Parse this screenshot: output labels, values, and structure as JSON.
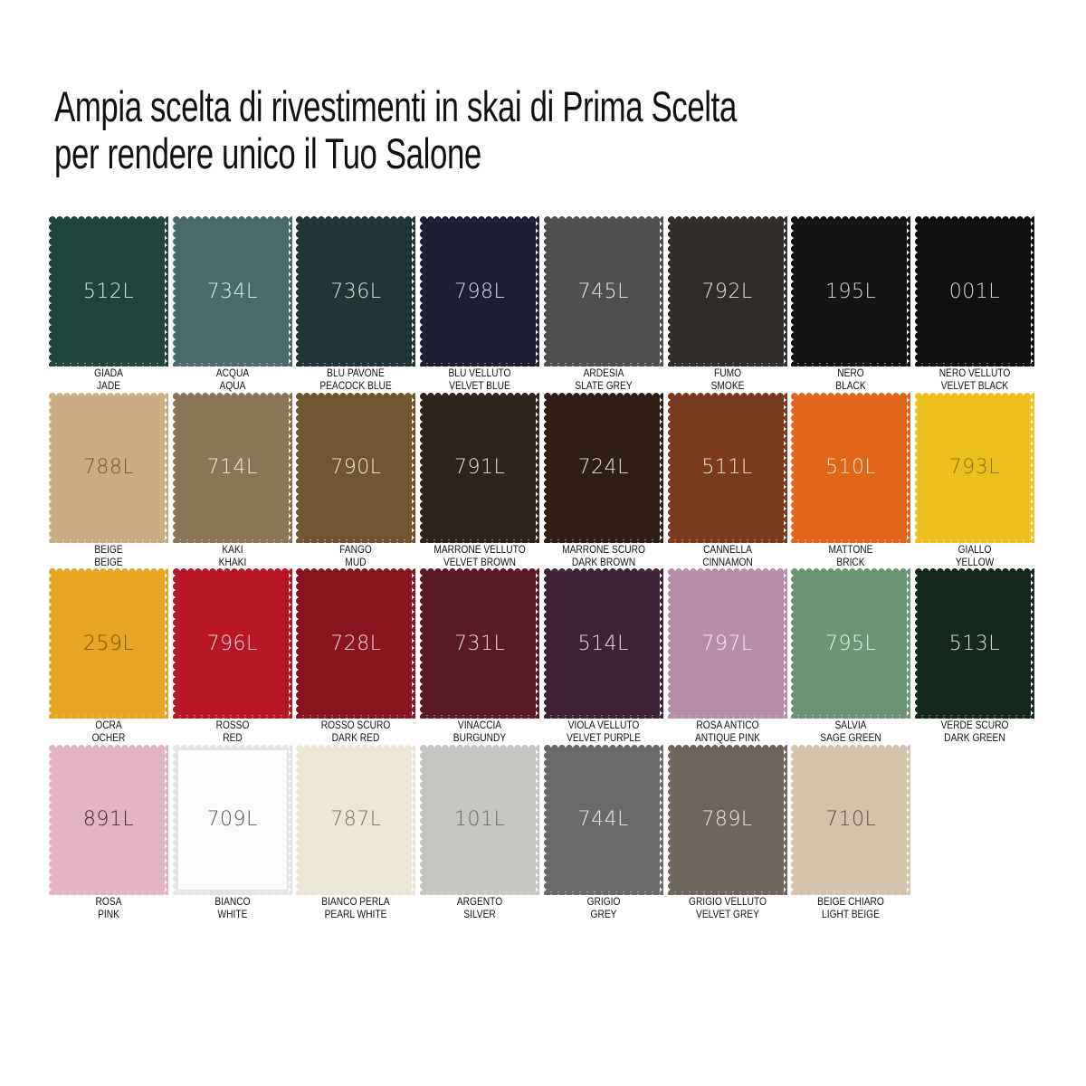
{
  "title": {
    "line1": "Ampia scelta di rivestimenti in skai di Prima Scelta",
    "line2": "per rendere unico il Tuo Salone"
  },
  "swatches": [
    {
      "code": "512L",
      "it": "GIADA",
      "en": "JADE",
      "color": "#22443f",
      "text": "#dfe6e4"
    },
    {
      "code": "734L",
      "it": "ACQUA",
      "en": "AQUA",
      "color": "#4a6a6c",
      "text": "#e6eeee"
    },
    {
      "code": "736L",
      "it": "BLU PAVONE",
      "en": "PEACOCK BLUE",
      "color": "#1f3536",
      "text": "#dfe6e6"
    },
    {
      "code": "798L",
      "it": "BLU VELLUTO",
      "en": "VELVET BLUE",
      "color": "#1c1f33",
      "text": "#dcdde6"
    },
    {
      "code": "745L",
      "it": "ARDESIA",
      "en": "SLATE GREY",
      "color": "#4f4f50",
      "text": "#e8e8e8"
    },
    {
      "code": "792L",
      "it": "FUMO",
      "en": "SMOKE",
      "color": "#302c29",
      "text": "#e6e3e0"
    },
    {
      "code": "195L",
      "it": "NERO",
      "en": "BLACK",
      "color": "#141414",
      "text": "#d8d8d8"
    },
    {
      "code": "001L",
      "it": "NERO VELLUTO",
      "en": "VELVET BLACK",
      "color": "#0f1110",
      "text": "#d8d8d8"
    },
    {
      "code": "788L",
      "it": "BEIGE",
      "en": "BEIGE",
      "color": "#c9ac82",
      "text": "#6e5a40"
    },
    {
      "code": "714L",
      "it": "KAKI",
      "en": "KHAKI",
      "color": "#8a7656",
      "text": "#f0ebe2"
    },
    {
      "code": "790L",
      "it": "FANGO",
      "en": "MUD",
      "color": "#6e5631",
      "text": "#efe7da"
    },
    {
      "code": "791L",
      "it": "MARRONE VELLUTO",
      "en": "VELVET BROWN",
      "color": "#2d241c",
      "text": "#e6e1dc"
    },
    {
      "code": "724L",
      "it": "MARRONE SCURO",
      "en": "DARK BROWN",
      "color": "#2e1e15",
      "text": "#e8e0da"
    },
    {
      "code": "511L",
      "it": "CANNELLA",
      "en": "CINNAMON",
      "color": "#7c3a1c",
      "text": "#f2e2d8"
    },
    {
      "code": "510L",
      "it": "MATTONE",
      "en": "BRICK",
      "color": "#e2661a",
      "text": "#fbe6d6"
    },
    {
      "code": "793L",
      "it": "GIALLO",
      "en": "YELLOW",
      "color": "#eebf1c",
      "text": "#8a6e12"
    },
    {
      "code": "259L",
      "it": "OCRA",
      "en": "OCHER",
      "color": "#e7a523",
      "text": "#7a5312"
    },
    {
      "code": "796L",
      "it": "ROSSO",
      "en": "RED",
      "color": "#b81624",
      "text": "#f6dcdc"
    },
    {
      "code": "728L",
      "it": "ROSSO SCURO",
      "en": "DARK RED",
      "color": "#8a1320",
      "text": "#f3dcdc"
    },
    {
      "code": "731L",
      "it": "VINACCIA",
      "en": "BURGUNDY",
      "color": "#5a1a26",
      "text": "#eedde0"
    },
    {
      "code": "514L",
      "it": "VIOLA VELLUTO",
      "en": "VELVET PURPLE",
      "color": "#3e2338",
      "text": "#e8dde6"
    },
    {
      "code": "797L",
      "it": "ROSA ANTICO",
      "en": "ANTIQUE PINK",
      "color": "#b58ea9",
      "text": "#f6eef4"
    },
    {
      "code": "795L",
      "it": "SALVIA",
      "en": "SAGE GREEN",
      "color": "#6c9473",
      "text": "#eaf2eb"
    },
    {
      "code": "513L",
      "it": "VERDE SCURO",
      "en": "DARK GREEN",
      "color": "#15281c",
      "text": "#dbe3dd"
    },
    {
      "code": "891L",
      "it": "ROSA",
      "en": "PINK",
      "color": "#e2b4c1",
      "text": "#3a2a2e"
    },
    {
      "code": "709L",
      "it": "BIANCO",
      "en": "WHITE",
      "color": "#fbfbfb",
      "text": "#555555"
    },
    {
      "code": "787L",
      "it": "BIANCO PERLA",
      "en": "PEARL WHITE",
      "color": "#ebe6d6",
      "text": "#777060"
    },
    {
      "code": "101L",
      "it": "ARGENTO",
      "en": "SILVER",
      "color": "#c6c5c1",
      "text": "#6a6966"
    },
    {
      "code": "744L",
      "it": "GRIGIO",
      "en": "GREY",
      "color": "#6a6a6d",
      "text": "#ececec"
    },
    {
      "code": "789L",
      "it": "GRIGIO VELLUTO",
      "en": "VELVET GREY",
      "color": "#6e665d",
      "text": "#ece8e3"
    },
    {
      "code": "710L",
      "it": "BEIGE CHIARO",
      "en": "LIGHT BEIGE",
      "color": "#d2c2ac",
      "text": "#5a4e40"
    }
  ]
}
